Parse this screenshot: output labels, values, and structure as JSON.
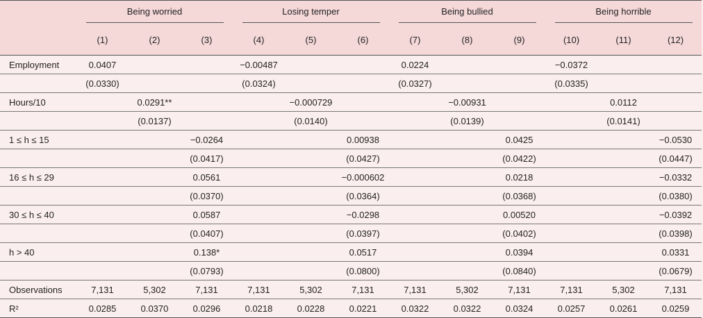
{
  "table": {
    "groups": [
      "Being worried",
      "Losing temper",
      "Being bullied",
      "Being horrible"
    ],
    "columns": [
      "(1)",
      "(2)",
      "(3)",
      "(4)",
      "(5)",
      "(6)",
      "(7)",
      "(8)",
      "(9)",
      "(10)",
      "(11)",
      "(12)"
    ],
    "rows": [
      {
        "label": "Employment",
        "cells": [
          "0.0407",
          null,
          null,
          "−0.00487",
          null,
          null,
          "0.0224",
          null,
          null,
          "−0.0372",
          null,
          null
        ]
      },
      {
        "label": null,
        "cells": [
          "(0.0330)",
          null,
          null,
          "(0.0324)",
          null,
          null,
          "(0.0327)",
          null,
          null,
          "(0.0335)",
          null,
          null
        ]
      },
      {
        "label": "Hours/10",
        "cells": [
          null,
          "0.0291**",
          null,
          null,
          "−0.000729",
          null,
          null,
          "−0.00931",
          null,
          null,
          "0.0112",
          null
        ]
      },
      {
        "label": null,
        "cells": [
          null,
          "(0.0137)",
          null,
          null,
          "(0.0140)",
          null,
          null,
          "(0.0139)",
          null,
          null,
          "(0.0141)",
          null
        ]
      },
      {
        "label": "1 ≤ h ≤ 15",
        "cells": [
          null,
          null,
          "−0.0264",
          null,
          null,
          "0.00938",
          null,
          null,
          "0.0425",
          null,
          null,
          "−0.0530"
        ]
      },
      {
        "label": null,
        "cells": [
          null,
          null,
          "(0.0417)",
          null,
          null,
          "(0.0427)",
          null,
          null,
          "(0.0422)",
          null,
          null,
          "(0.0447)"
        ]
      },
      {
        "label": "16 ≤ h ≤ 29",
        "cells": [
          null,
          null,
          "0.0561",
          null,
          null,
          "−0.000602",
          null,
          null,
          "0.0218",
          null,
          null,
          "−0.0332"
        ]
      },
      {
        "label": null,
        "cells": [
          null,
          null,
          "(0.0370)",
          null,
          null,
          "(0.0364)",
          null,
          null,
          "(0.0368)",
          null,
          null,
          "(0.0380)"
        ]
      },
      {
        "label": "30 ≤ h ≤ 40",
        "cells": [
          null,
          null,
          "0.0587",
          null,
          null,
          "−0.0298",
          null,
          null,
          "0.00520",
          null,
          null,
          "−0.0392"
        ]
      },
      {
        "label": null,
        "cells": [
          null,
          null,
          "(0.0407)",
          null,
          null,
          "(0.0397)",
          null,
          null,
          "(0.0402)",
          null,
          null,
          "(0.0398)"
        ]
      },
      {
        "label": "h > 40",
        "cells": [
          null,
          null,
          "0.138*",
          null,
          null,
          "0.0517",
          null,
          null,
          "0.0394",
          null,
          null,
          "0.0331"
        ]
      },
      {
        "label": null,
        "cells": [
          null,
          null,
          "(0.0793)",
          null,
          null,
          "(0.0800)",
          null,
          null,
          "(0.0840)",
          null,
          null,
          "(0.0679)"
        ]
      },
      {
        "label": "Observations",
        "cells": [
          "7,131",
          "5,302",
          "7,131",
          "7,131",
          "5,302",
          "7,131",
          "7,131",
          "5,302",
          "7,131",
          "7,131",
          "5,302",
          "7,131"
        ]
      },
      {
        "label": "R²",
        "cells": [
          "0.0285",
          "0.0370",
          "0.0296",
          "0.0218",
          "0.0228",
          "0.0221",
          "0.0322",
          "0.0322",
          "0.0324",
          "0.0257",
          "0.0261",
          "0.0259"
        ]
      }
    ]
  }
}
